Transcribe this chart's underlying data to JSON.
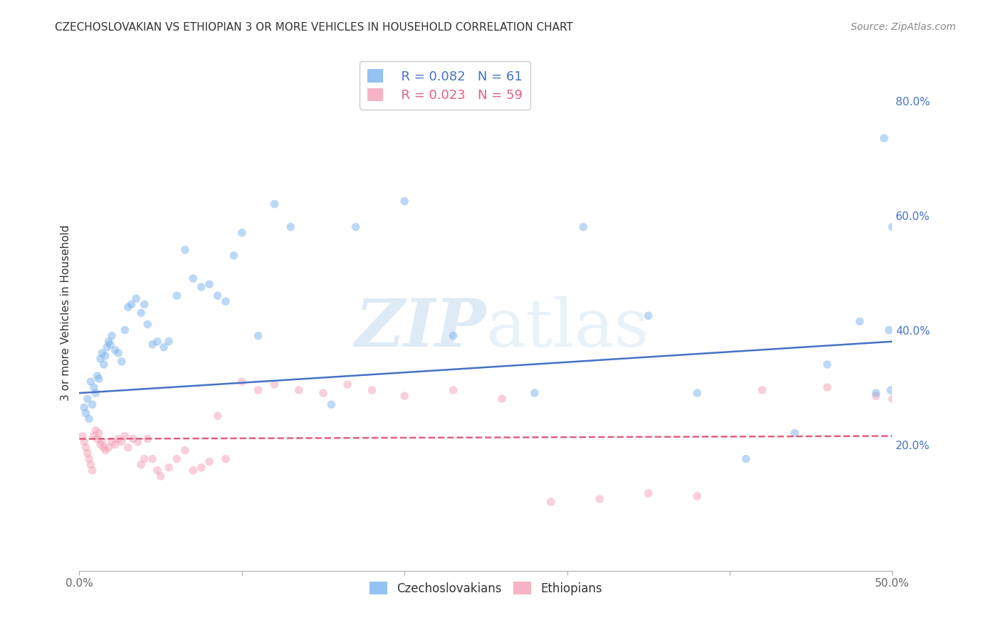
{
  "title": "CZECHOSLOVAKIAN VS ETHIOPIAN 3 OR MORE VEHICLES IN HOUSEHOLD CORRELATION CHART",
  "source": "Source: ZipAtlas.com",
  "ylabel": "3 or more Vehicles in Household",
  "xlim": [
    0.0,
    0.5
  ],
  "ylim": [
    -0.02,
    0.88
  ],
  "xticks": [
    0.0,
    0.1,
    0.2,
    0.3,
    0.4,
    0.5
  ],
  "xtick_labels": [
    "0.0%",
    "",
    "",
    "",
    "",
    "50.0%"
  ],
  "yticks": [
    0.2,
    0.4,
    0.6,
    0.8
  ],
  "ytick_labels": [
    "20.0%",
    "40.0%",
    "60.0%",
    "80.0%"
  ],
  "grid_color": "#cccccc",
  "background_color": "#ffffff",
  "watermark": "ZIPatlas",
  "legend_r1": "R = 0.082",
  "legend_n1": "N = 61",
  "legend_r2": "R = 0.023",
  "legend_n2": "N = 59",
  "blue_color": "#7ab3ef",
  "pink_color": "#f4a0b5",
  "line_blue": "#4472c4",
  "line_pink": "#e06080",
  "blue_scatter_x": [
    0.003,
    0.004,
    0.005,
    0.006,
    0.007,
    0.008,
    0.009,
    0.01,
    0.011,
    0.012,
    0.013,
    0.014,
    0.015,
    0.016,
    0.017,
    0.018,
    0.019,
    0.02,
    0.022,
    0.024,
    0.026,
    0.028,
    0.03,
    0.032,
    0.035,
    0.038,
    0.04,
    0.042,
    0.045,
    0.048,
    0.052,
    0.055,
    0.06,
    0.065,
    0.07,
    0.075,
    0.08,
    0.085,
    0.09,
    0.095,
    0.1,
    0.11,
    0.12,
    0.13,
    0.155,
    0.17,
    0.2,
    0.23,
    0.28,
    0.31,
    0.35,
    0.38,
    0.41,
    0.44,
    0.46,
    0.48,
    0.49,
    0.495,
    0.498,
    0.499,
    0.5
  ],
  "blue_scatter_y": [
    0.265,
    0.255,
    0.28,
    0.245,
    0.31,
    0.27,
    0.3,
    0.29,
    0.32,
    0.315,
    0.35,
    0.36,
    0.34,
    0.355,
    0.37,
    0.38,
    0.375,
    0.39,
    0.365,
    0.36,
    0.345,
    0.4,
    0.44,
    0.445,
    0.455,
    0.43,
    0.445,
    0.41,
    0.375,
    0.38,
    0.37,
    0.38,
    0.46,
    0.54,
    0.49,
    0.475,
    0.48,
    0.46,
    0.45,
    0.53,
    0.57,
    0.39,
    0.62,
    0.58,
    0.27,
    0.58,
    0.625,
    0.39,
    0.29,
    0.58,
    0.425,
    0.29,
    0.175,
    0.22,
    0.34,
    0.415,
    0.29,
    0.735,
    0.4,
    0.295,
    0.58
  ],
  "pink_scatter_x": [
    0.002,
    0.003,
    0.004,
    0.005,
    0.006,
    0.007,
    0.008,
    0.009,
    0.01,
    0.011,
    0.012,
    0.013,
    0.014,
    0.015,
    0.016,
    0.018,
    0.02,
    0.022,
    0.024,
    0.026,
    0.028,
    0.03,
    0.033,
    0.036,
    0.038,
    0.04,
    0.042,
    0.045,
    0.048,
    0.05,
    0.055,
    0.06,
    0.065,
    0.07,
    0.075,
    0.08,
    0.085,
    0.09,
    0.1,
    0.11,
    0.12,
    0.135,
    0.15,
    0.165,
    0.18,
    0.2,
    0.23,
    0.26,
    0.29,
    0.32,
    0.35,
    0.38,
    0.42,
    0.46,
    0.49,
    0.5,
    0.505,
    0.51,
    0.515
  ],
  "pink_scatter_y": [
    0.215,
    0.205,
    0.195,
    0.185,
    0.175,
    0.165,
    0.155,
    0.215,
    0.225,
    0.21,
    0.22,
    0.2,
    0.205,
    0.195,
    0.19,
    0.195,
    0.205,
    0.2,
    0.21,
    0.205,
    0.215,
    0.195,
    0.21,
    0.205,
    0.165,
    0.175,
    0.21,
    0.175,
    0.155,
    0.145,
    0.16,
    0.175,
    0.19,
    0.155,
    0.16,
    0.17,
    0.25,
    0.175,
    0.31,
    0.295,
    0.305,
    0.295,
    0.29,
    0.305,
    0.295,
    0.285,
    0.295,
    0.28,
    0.1,
    0.105,
    0.115,
    0.11,
    0.295,
    0.3,
    0.285,
    0.28,
    0.29,
    0.28,
    0.285
  ],
  "blue_line_x": [
    0.0,
    0.5
  ],
  "blue_line_y": [
    0.29,
    0.38
  ],
  "pink_line_x": [
    0.0,
    0.5
  ],
  "pink_line_y": [
    0.21,
    0.215
  ],
  "title_fontsize": 11,
  "axis_label_fontsize": 11,
  "tick_fontsize": 11,
  "legend_fontsize": 12,
  "source_fontsize": 10,
  "marker_size": 70,
  "marker_alpha": 0.5,
  "line_width": 1.8
}
